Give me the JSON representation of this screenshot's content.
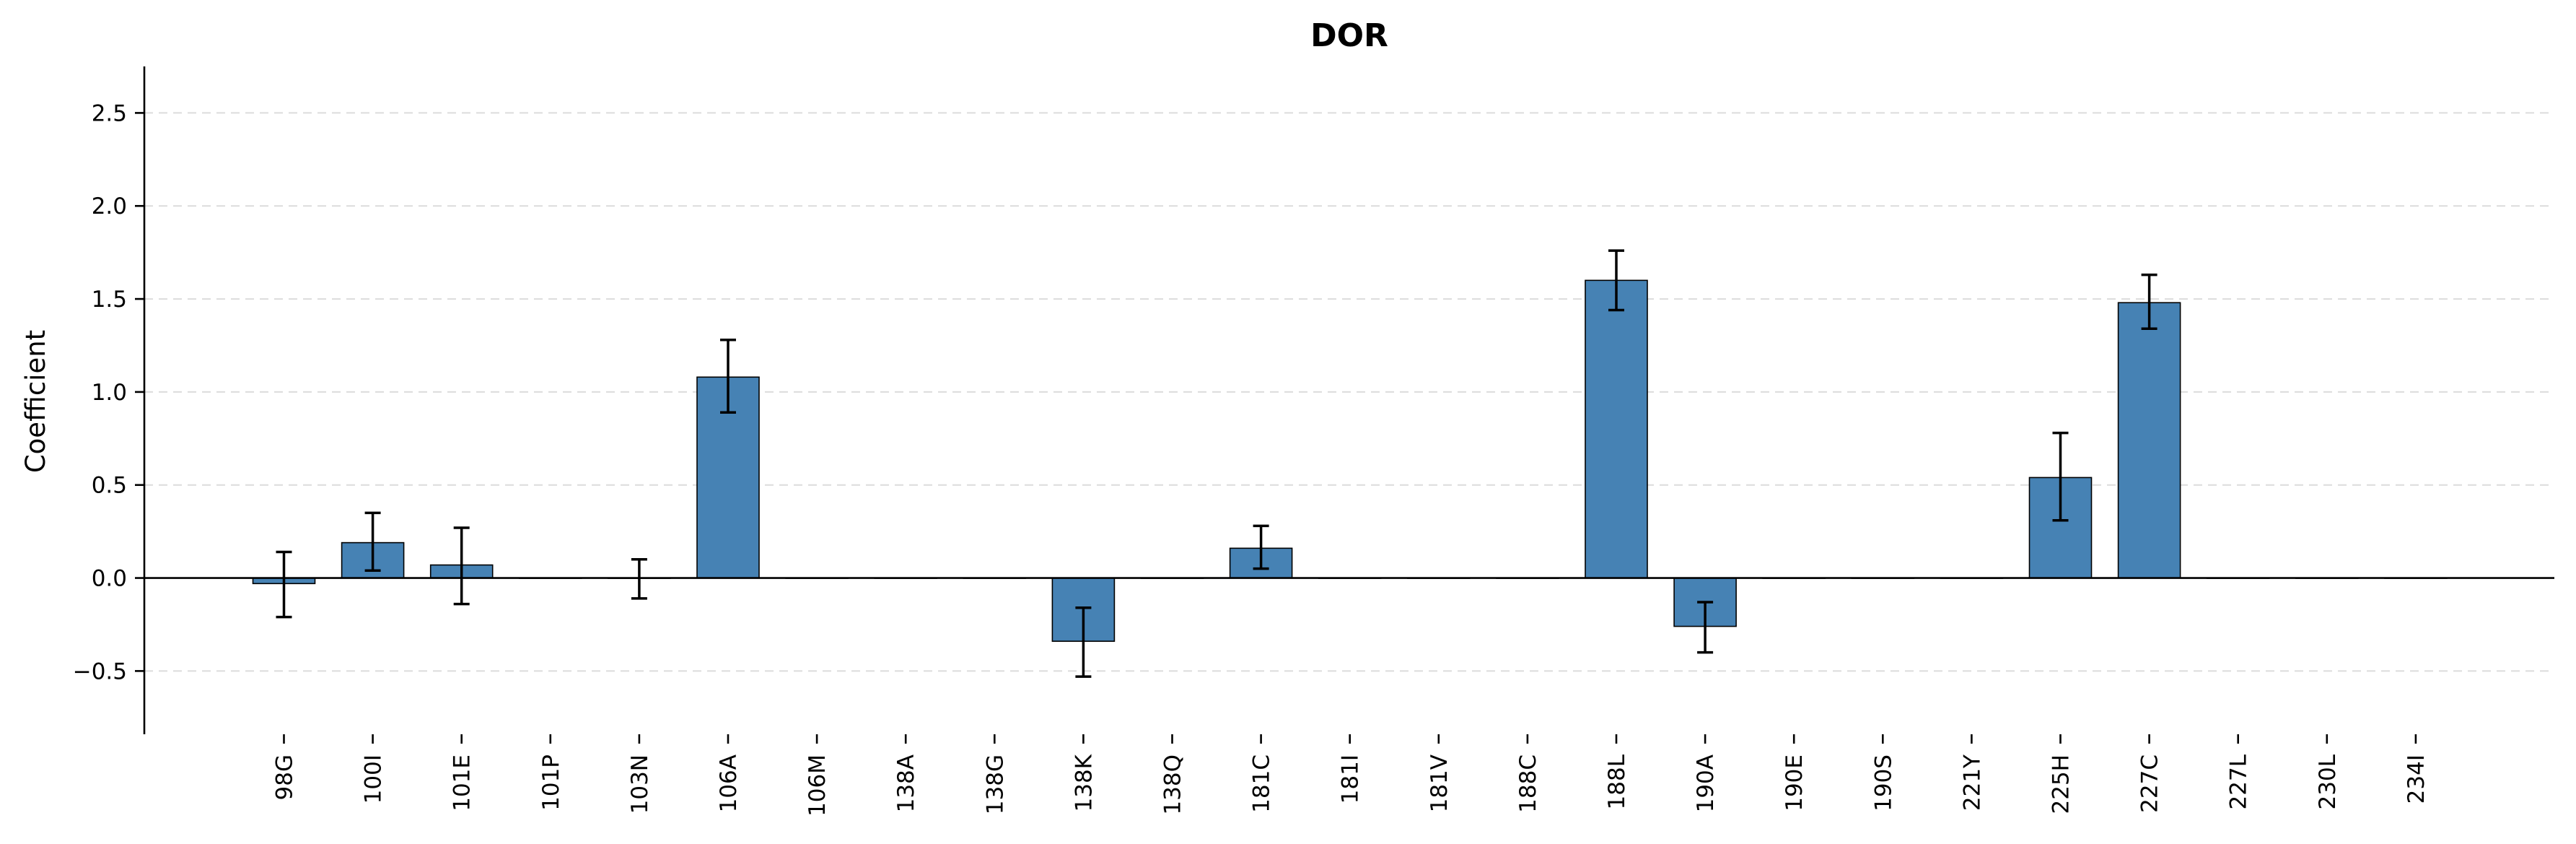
{
  "chart_data": {
    "type": "bar",
    "title": "DOR",
    "xlabel": "",
    "ylabel": "Coefficient",
    "ylim": [
      -0.84,
      2.75
    ],
    "yticks": [
      -0.5,
      0.0,
      0.5,
      1.0,
      1.5,
      2.0,
      2.5
    ],
    "ytick_labels": [
      "−0.5",
      "0.0",
      "0.5",
      "1.0",
      "1.5",
      "2.0",
      "2.5"
    ],
    "grid": "horizontal dashed",
    "bar_color": "#4682b4",
    "categories": [
      "98G",
      "100I",
      "101E",
      "101P",
      "103N",
      "106A",
      "106M",
      "138A",
      "138G",
      "138K",
      "138Q",
      "181C",
      "181I",
      "181V",
      "188C",
      "188L",
      "190A",
      "190E",
      "190S",
      "221Y",
      "225H",
      "227C",
      "227L",
      "230L",
      "234I"
    ],
    "values": [
      -0.03,
      0.19,
      0.07,
      0.0,
      0.0,
      1.08,
      0.0,
      0.0,
      0.0,
      -0.34,
      0.0,
      0.16,
      0.0,
      0.0,
      0.0,
      1.6,
      -0.26,
      0.0,
      0.0,
      0.0,
      0.54,
      1.48,
      0.0,
      0.0,
      0.0
    ],
    "errors": [
      [
        -0.21,
        0.14
      ],
      [
        0.04,
        0.35
      ],
      [
        -0.14,
        0.27
      ],
      null,
      [
        -0.11,
        0.1
      ],
      [
        0.89,
        1.28
      ],
      null,
      null,
      null,
      [
        -0.53,
        -0.16
      ],
      null,
      [
        0.05,
        0.28
      ],
      null,
      null,
      null,
      [
        1.44,
        1.76
      ],
      [
        -0.4,
        -0.13
      ],
      null,
      null,
      null,
      [
        0.31,
        0.78
      ],
      [
        1.34,
        1.63
      ],
      null,
      null,
      null
    ]
  }
}
